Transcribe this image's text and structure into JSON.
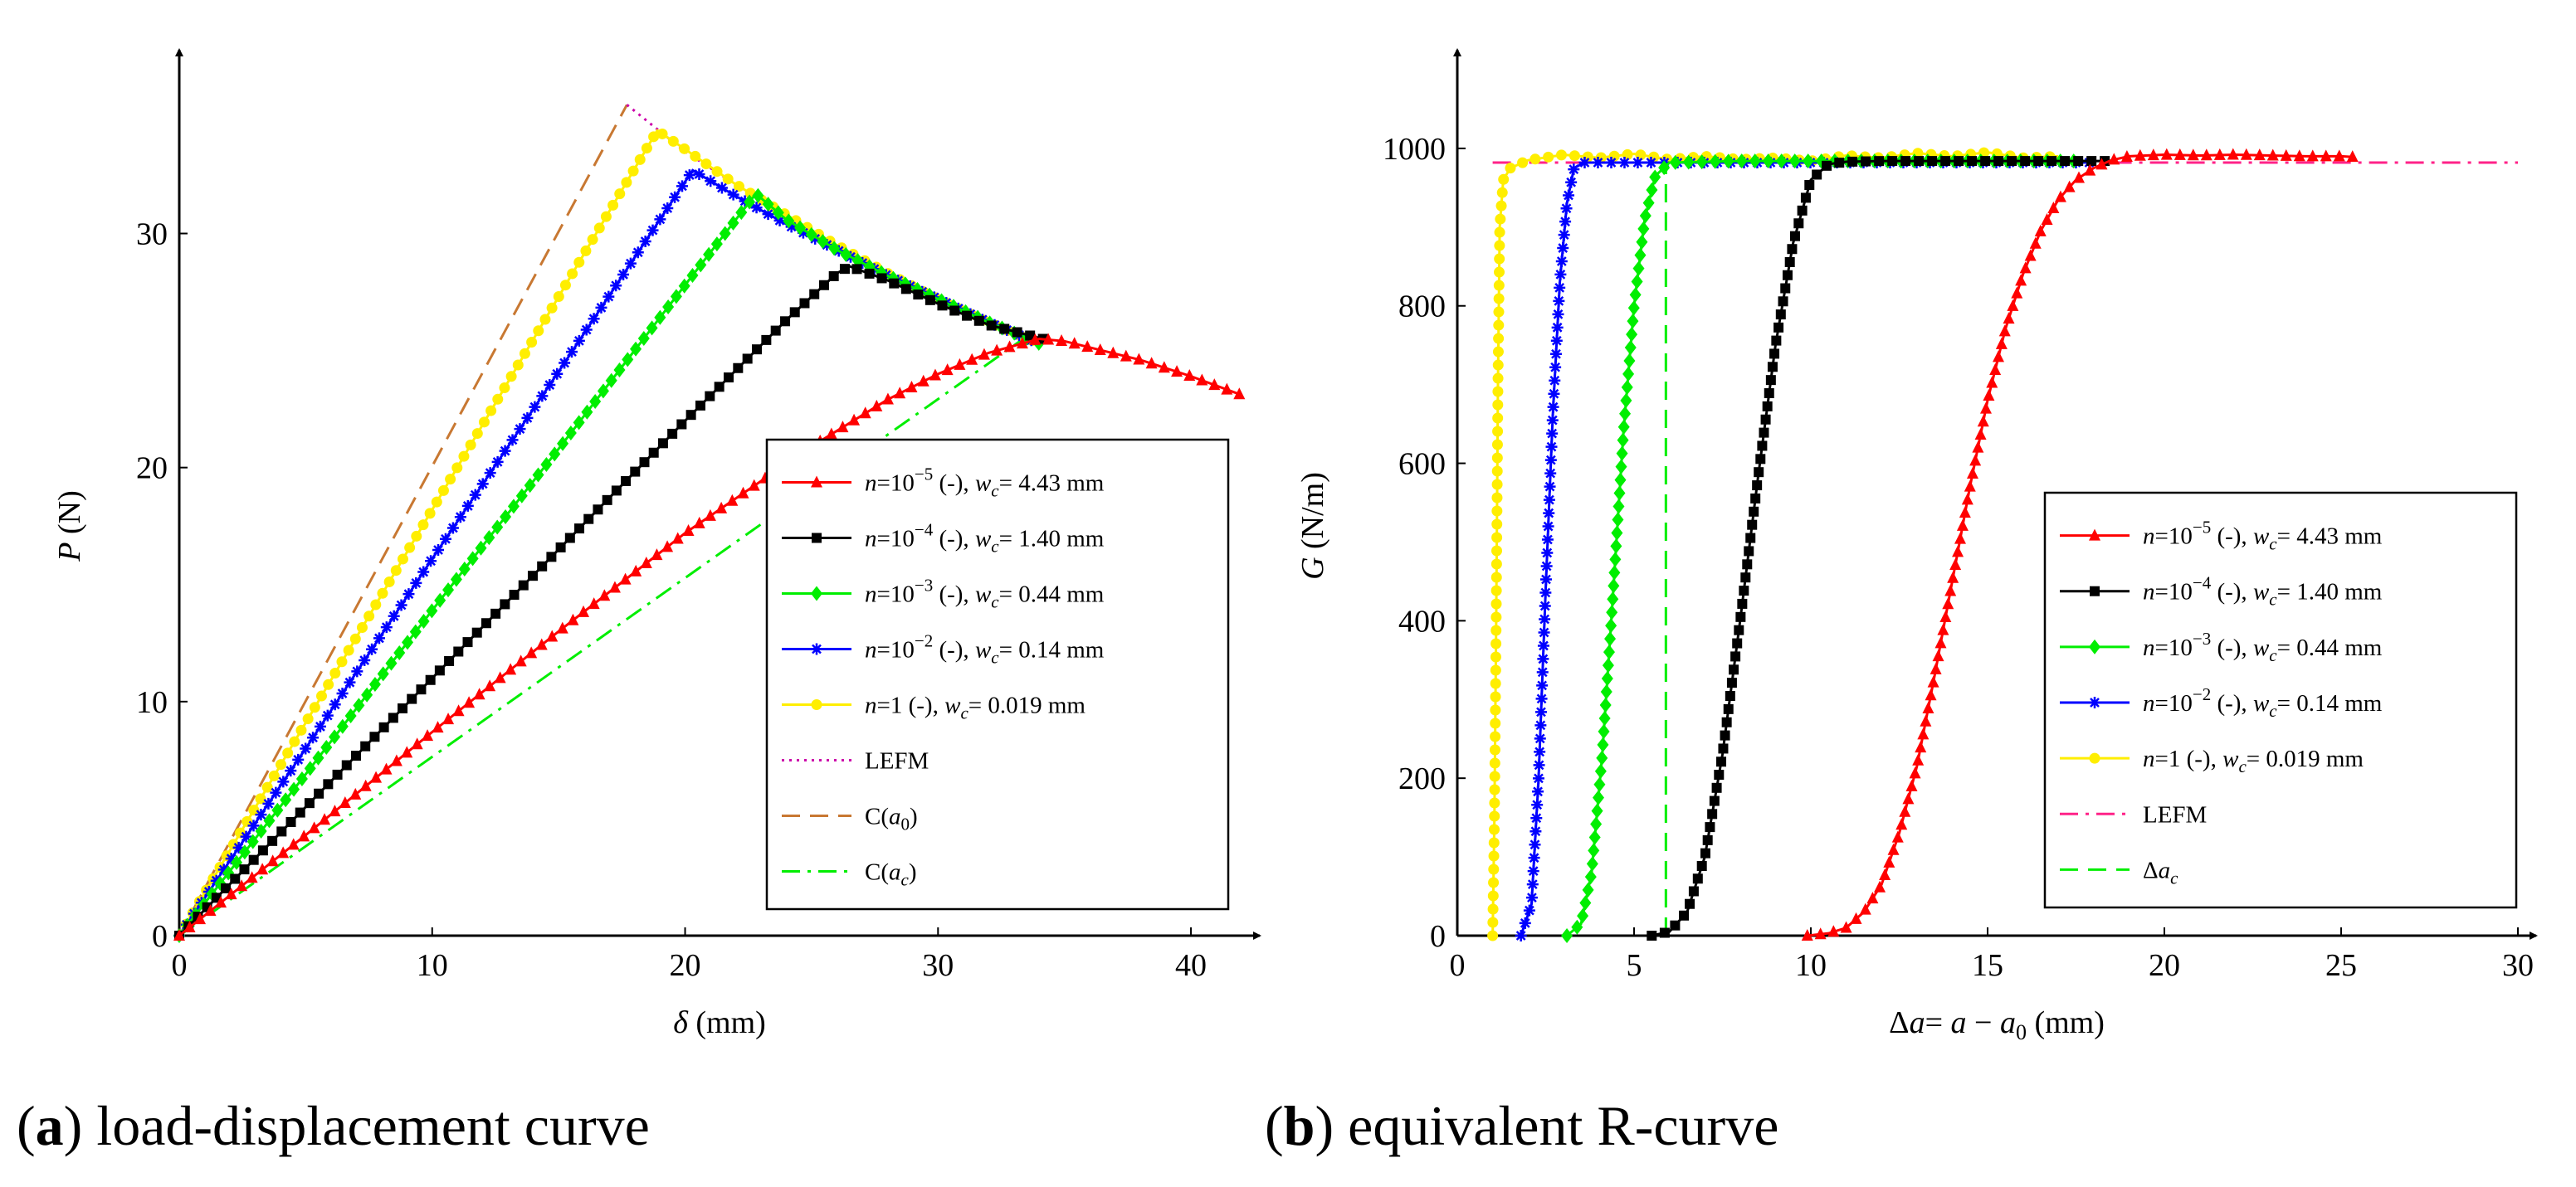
{
  "captions": {
    "a": {
      "label": "a",
      "text": "load-displacement curve"
    },
    "b": {
      "label": "b",
      "text": "equivalent R-curve"
    }
  },
  "chart_data": [
    {
      "id": "a",
      "type": "line",
      "title": "load-displacement curve",
      "xlabel": "δ (mm)",
      "ylabel": "P (N)",
      "xlim": [
        0,
        42
      ],
      "ylim": [
        0,
        37
      ],
      "xticks": [
        0,
        10,
        20,
        30,
        40
      ],
      "yticks": [
        0,
        10,
        20,
        30
      ],
      "grid": false,
      "legend_position": "center-right",
      "series": [
        {
          "name": "n=10⁻⁵ (-), w_c= 4.43 mm",
          "label": {
            "n": "10",
            "exp": "−5",
            "wc": "4.43 mm"
          },
          "color": "#ff0000",
          "marker": "triangle",
          "dash": "solid",
          "points": [
            [
              0,
              0
            ],
            [
              5,
              4.3
            ],
            [
              10,
              8.7
            ],
            [
              15,
              13.0
            ],
            [
              20,
              17.2
            ],
            [
              25,
              20.9
            ],
            [
              28,
              22.9
            ],
            [
              30,
              24.0
            ],
            [
              32,
              24.9
            ],
            [
              34,
              25.5
            ],
            [
              35,
              25.4
            ],
            [
              38,
              24.6
            ],
            [
              40,
              23.9
            ],
            [
              42,
              23.1
            ]
          ]
        },
        {
          "name": "n=10⁻⁴ (-), w_c= 1.40 mm",
          "label": {
            "n": "10",
            "exp": "−4",
            "wc": "1.40 mm"
          },
          "color": "#000000",
          "marker": "square",
          "dash": "solid",
          "points": [
            [
              0,
              0
            ],
            [
              5,
              5.5
            ],
            [
              10,
              11.0
            ],
            [
              15,
              16.5
            ],
            [
              20,
              22.0
            ],
            [
              24,
              26.3
            ],
            [
              26,
              28.3
            ],
            [
              26.5,
              28.6
            ],
            [
              28,
              28.0
            ],
            [
              30,
              27.0
            ],
            [
              32,
              26.1
            ],
            [
              34.5,
              25.4
            ]
          ]
        },
        {
          "name": "n=10⁻³ (-), w_c= 0.44 mm",
          "label": {
            "n": "10",
            "exp": "−3",
            "wc": "0.44 mm"
          },
          "color": "#00ee00",
          "marker": "diamond",
          "dash": "solid",
          "points": [
            [
              0,
              0
            ],
            [
              5,
              6.9
            ],
            [
              10,
              13.9
            ],
            [
              15,
              20.8
            ],
            [
              20,
              27.8
            ],
            [
              22.8,
              31.7
            ],
            [
              24,
              30.6
            ],
            [
              26,
              29.3
            ],
            [
              28,
              28.2
            ],
            [
              30,
              27.2
            ],
            [
              32,
              26.2
            ],
            [
              34,
              25.3
            ]
          ]
        },
        {
          "name": "n=10⁻² (-), w_c= 0.14 mm",
          "label": {
            "n": "10",
            "exp": "−2",
            "wc": "0.14 mm"
          },
          "color": "#0000ff",
          "marker": "star",
          "dash": "solid",
          "points": [
            [
              0,
              0
            ],
            [
              5,
              8.0
            ],
            [
              10,
              16.1
            ],
            [
              15,
              24.1
            ],
            [
              20.3,
              32.7
            ],
            [
              22,
              31.6
            ],
            [
              24,
              30.4
            ],
            [
              26,
              29.3
            ],
            [
              28,
              28.2
            ],
            [
              30,
              27.2
            ],
            [
              32,
              26.2
            ],
            [
              34,
              25.3
            ]
          ]
        },
        {
          "name": "n=1 (-), w_c= 0.019 mm",
          "label": {
            "n": "1",
            "exp": "",
            "wc": "0.019 mm"
          },
          "color": "#ffee00",
          "marker": "circle",
          "dash": "solid",
          "points": [
            [
              0,
              0
            ],
            [
              5,
              9.1
            ],
            [
              10,
              18.2
            ],
            [
              15,
              27.3
            ],
            [
              18.9,
              34.4
            ],
            [
              20,
              33.6
            ],
            [
              22,
              32.1
            ],
            [
              24,
              30.8
            ],
            [
              26,
              29.5
            ],
            [
              28,
              28.3
            ],
            [
              30,
              27.2
            ],
            [
              32,
              26.2
            ],
            [
              33.8,
              25.4
            ]
          ]
        },
        {
          "name": "LEFM",
          "color": "#cc00aa",
          "marker": "none",
          "dash": "dotted",
          "points": [
            [
              17.7,
              35.5
            ],
            [
              20,
              33.5
            ],
            [
              22,
              32.1
            ],
            [
              24,
              30.8
            ],
            [
              26,
              29.5
            ],
            [
              28,
              28.3
            ],
            [
              30,
              27.2
            ],
            [
              32,
              26.2
            ],
            [
              34,
              25.4
            ]
          ]
        },
        {
          "name": "C(a0)",
          "color": "#c87832",
          "marker": "none",
          "dash": "dashed",
          "points": [
            [
              0,
              0
            ],
            [
              17.7,
              35.5
            ]
          ]
        },
        {
          "name": "C(ac)",
          "color": "#00ee00",
          "marker": "none",
          "dash": "dashdot",
          "points": [
            [
              0,
              0
            ],
            [
              33.5,
              25.6
            ]
          ]
        }
      ]
    },
    {
      "id": "b",
      "type": "line",
      "title": "equivalent R-curve",
      "xlabel": "Δa= a − a0 (mm)",
      "ylabel": "G (N/m)",
      "xlim": [
        0,
        30
      ],
      "ylim": [
        0,
        1100
      ],
      "xticks": [
        0,
        5,
        10,
        15,
        20,
        25,
        30
      ],
      "yticks": [
        0,
        200,
        400,
        600,
        800,
        1000
      ],
      "grid": false,
      "legend_position": "center-right",
      "series": [
        {
          "name": "n=10⁻⁵ (-), w_c= 4.43 mm",
          "label": {
            "n": "10",
            "exp": "−5",
            "wc": "4.43 mm"
          },
          "color": "#ff0000",
          "marker": "triangle",
          "dash": "solid",
          "points": [
            [
              9.9,
              0
            ],
            [
              10.5,
              3
            ],
            [
              11,
              10
            ],
            [
              11.5,
              30
            ],
            [
              12,
              65
            ],
            [
              12.5,
              130
            ],
            [
              13,
              215
            ],
            [
              13.5,
              330
            ],
            [
              14,
              450
            ],
            [
              14.5,
              570
            ],
            [
              15,
              680
            ],
            [
              15.5,
              770
            ],
            [
              16,
              840
            ],
            [
              16.5,
              895
            ],
            [
              17,
              935
            ],
            [
              17.5,
              960
            ],
            [
              18,
              975
            ],
            [
              18.5,
              985
            ],
            [
              19,
              990
            ],
            [
              20,
              992
            ],
            [
              21,
              991
            ],
            [
              22,
              992
            ],
            [
              23,
              991
            ],
            [
              24,
              990
            ],
            [
              25,
              990
            ],
            [
              25.4,
              989
            ]
          ]
        },
        {
          "name": "n=10⁻⁴ (-), w_c= 1.40 mm",
          "label": {
            "n": "10",
            "exp": "−4",
            "wc": "1.40 mm"
          },
          "color": "#000000",
          "marker": "square",
          "dash": "solid",
          "points": [
            [
              5.5,
              0
            ],
            [
              6,
              5
            ],
            [
              6.5,
              30
            ],
            [
              7,
              100
            ],
            [
              7.5,
              230
            ],
            [
              8,
              400
            ],
            [
              8.5,
              580
            ],
            [
              9,
              750
            ],
            [
              9.5,
              880
            ],
            [
              10,
              960
            ],
            [
              10.5,
              980
            ],
            [
              11,
              983
            ],
            [
              12,
              984
            ],
            [
              13,
              984
            ],
            [
              14,
              984
            ],
            [
              15,
              984
            ],
            [
              16,
              984
            ],
            [
              17,
              984
            ],
            [
              18,
              984
            ],
            [
              18.4,
              984
            ]
          ]
        },
        {
          "name": "n=10⁻³ (-), w_c= 0.44 mm",
          "label": {
            "n": "10",
            "exp": "−3",
            "wc": "0.44 mm"
          },
          "color": "#00ee00",
          "marker": "diamond",
          "dash": "solid",
          "points": [
            [
              3.1,
              0
            ],
            [
              3.5,
              15
            ],
            [
              3.8,
              80
            ],
            [
              4.1,
              230
            ],
            [
              4.4,
              430
            ],
            [
              4.7,
              640
            ],
            [
              5,
              800
            ],
            [
              5.3,
              910
            ],
            [
              5.6,
              965
            ],
            [
              6,
              982
            ],
            [
              8,
              984
            ],
            [
              10,
              984
            ],
            [
              12,
              984
            ],
            [
              14,
              984
            ],
            [
              16,
              984
            ],
            [
              17.8,
              984
            ]
          ]
        },
        {
          "name": "n=10⁻² (-), w_c= 0.14 mm",
          "label": {
            "n": "10",
            "exp": "−2",
            "wc": "0.14 mm"
          },
          "color": "#0000ff",
          "marker": "star",
          "dash": "solid",
          "points": [
            [
              1.8,
              0
            ],
            [
              2.1,
              40
            ],
            [
              2.3,
              200
            ],
            [
              2.5,
              440
            ],
            [
              2.7,
              660
            ],
            [
              2.9,
              830
            ],
            [
              3.1,
              930
            ],
            [
              3.3,
              975
            ],
            [
              3.6,
              982
            ],
            [
              5,
              982
            ],
            [
              7,
              982
            ],
            [
              9,
              982
            ],
            [
              11,
              982
            ],
            [
              13,
              982
            ],
            [
              15,
              982
            ],
            [
              17,
              982
            ],
            [
              17.9,
              982
            ]
          ]
        },
        {
          "name": "n=1 (-), w_c= 0.019 mm",
          "label": {
            "n": "1",
            "exp": "",
            "wc": "0.019 mm"
          },
          "color": "#ffee00",
          "marker": "circle",
          "dash": "solid",
          "points": [
            [
              1.0,
              0
            ],
            [
              1.05,
              150
            ],
            [
              1.1,
              400
            ],
            [
              1.15,
              700
            ],
            [
              1.2,
              900
            ],
            [
              1.3,
              960
            ],
            [
              1.5,
              975
            ],
            [
              2,
              985
            ],
            [
              3,
              992
            ],
            [
              4,
              988
            ],
            [
              5,
              993
            ],
            [
              6,
              986
            ],
            [
              7,
              990
            ],
            [
              8,
              986
            ],
            [
              9,
              988
            ],
            [
              10,
              984
            ],
            [
              11,
              991
            ],
            [
              12,
              988
            ],
            [
              13,
              994
            ],
            [
              14,
              990
            ],
            [
              15,
              995
            ],
            [
              16,
              988
            ],
            [
              17,
              990
            ]
          ]
        },
        {
          "name": "LEFM",
          "color": "#ff2288",
          "marker": "none",
          "dash": "dashdot",
          "points": [
            [
              1,
              982
            ],
            [
              30,
              982
            ]
          ]
        },
        {
          "name": "Δac",
          "color": "#00ee00",
          "marker": "none",
          "dash": "dashed",
          "points": [
            [
              5.9,
              0
            ],
            [
              5.9,
              982
            ]
          ]
        }
      ]
    }
  ]
}
